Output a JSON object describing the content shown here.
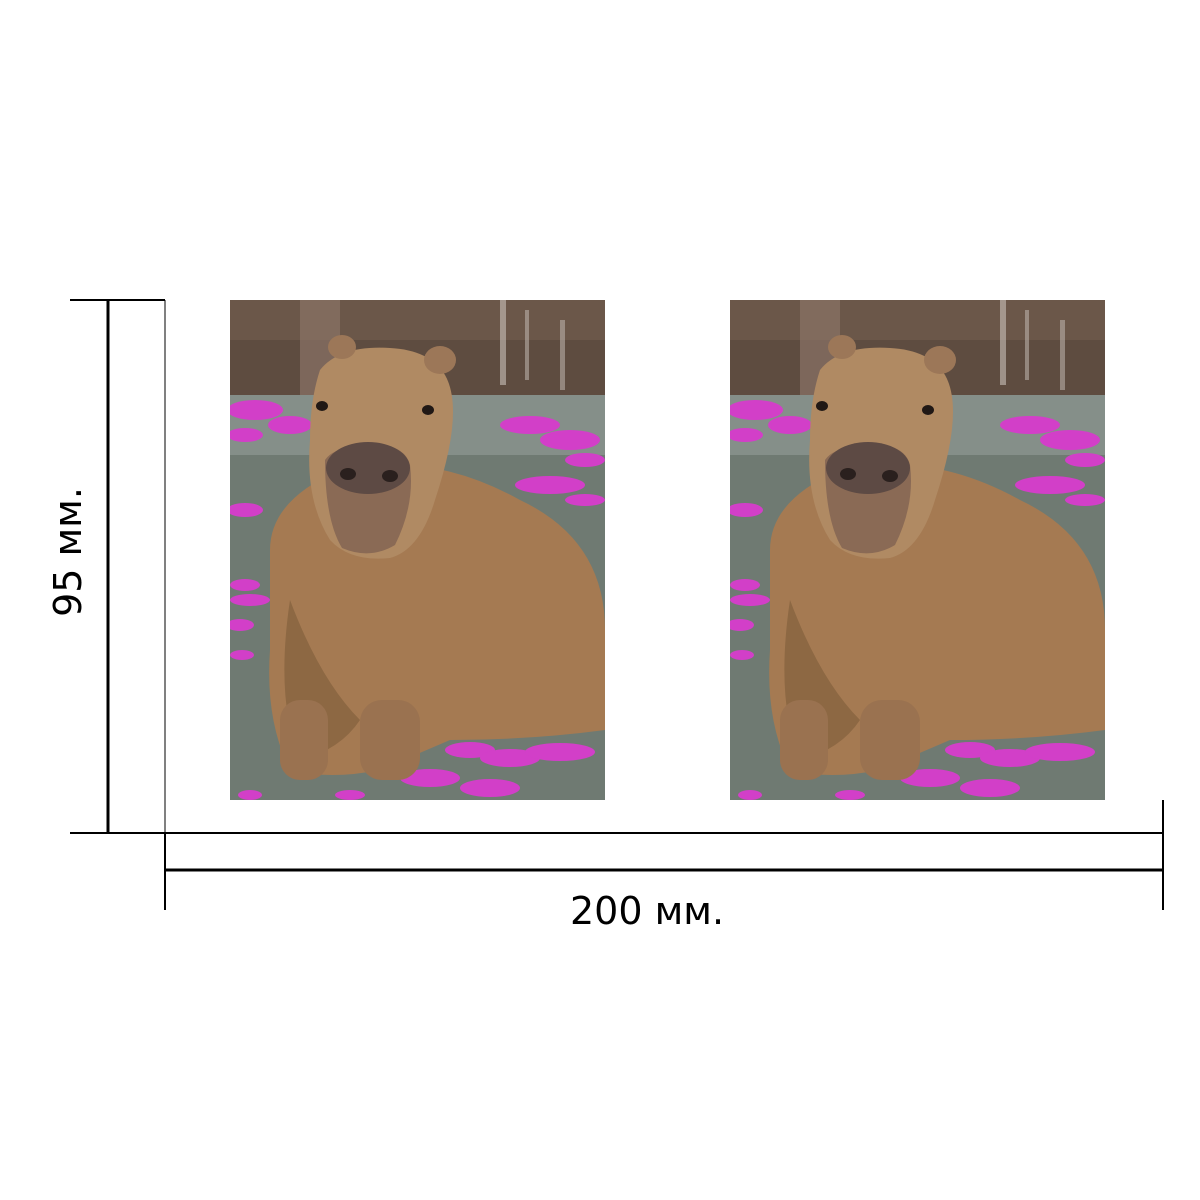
{
  "dimensions": {
    "width_label": "200 мм.",
    "height_label": "95 мм."
  },
  "photos": [
    {
      "subject": "capybara-in-water-with-orchid-petals"
    },
    {
      "subject": "capybara-in-water-with-orchid-petals"
    }
  ],
  "colors": {
    "line": "#000000",
    "background": "#ffffff",
    "petal": "#d23fc8",
    "fur": "#a57a52",
    "water": "#6f7a72",
    "wall": "#5e4c40"
  }
}
